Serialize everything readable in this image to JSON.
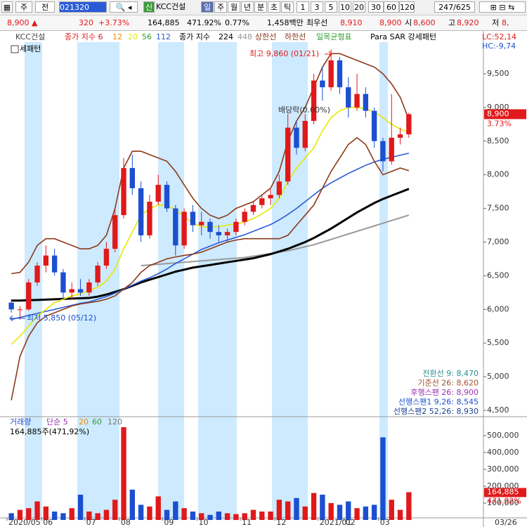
{
  "toolbar": {
    "buttons": [
      "주",
      "전"
    ],
    "code": "021320",
    "tag": "신",
    "name": "KCC건설",
    "periods": [
      "일",
      "주",
      "월",
      "년",
      "분",
      "초",
      "틱"
    ],
    "intervals": [
      "1",
      "3",
      "5",
      "10",
      "20",
      "30",
      "60",
      "120"
    ],
    "count": "247/625"
  },
  "quote": {
    "price": "8,900 ▲",
    "change": "320",
    "rate": "+3.73%",
    "volume": "164,885",
    "volume_rate": "471.92%",
    "turnover": "0.77%",
    "amount": "1,458백만",
    "best": "최우선",
    "best_ask": "8,910",
    "best_bid": "8,900",
    "open_label": "시",
    "open": "8,600",
    "high_label": "고",
    "high": "8,920",
    "low_label": "저",
    "low": "8,"
  },
  "chart_data": [
    {
      "type": "candlestick",
      "up_color": "#e0191b",
      "down_color": "#1c4fd0",
      "open": [
        6100,
        6000,
        6000,
        6400,
        6650,
        6800,
        6550,
        6250,
        6300,
        6250,
        6400,
        6650,
        6900,
        7400,
        8100,
        7800,
        7100,
        7600,
        7850,
        7500,
        6950,
        7450,
        7250,
        7300,
        7150,
        7100,
        7150,
        7300,
        7450,
        7550,
        7650,
        7700,
        7900,
        8700,
        8400,
        8800,
        9400,
        9300,
        9700,
        9300,
        9000,
        9200,
        8950,
        8500,
        8200,
        8550,
        8600
      ],
      "high": [
        6150,
        6050,
        6450,
        6700,
        6950,
        6900,
        6600,
        6400,
        6450,
        6450,
        6700,
        7000,
        7500,
        8250,
        8300,
        7900,
        7700,
        8000,
        7900,
        7550,
        7500,
        7550,
        7450,
        7350,
        7250,
        7200,
        7350,
        7500,
        7600,
        7700,
        7800,
        8000,
        8900,
        8800,
        8900,
        9500,
        9600,
        9860,
        9750,
        9450,
        9500,
        9300,
        9000,
        8550,
        9200,
        8700,
        8920
      ],
      "low": [
        5950,
        5850,
        5980,
        6350,
        6550,
        6500,
        6150,
        6150,
        6200,
        6200,
        6350,
        6600,
        6850,
        7350,
        7700,
        7000,
        7050,
        7550,
        7450,
        6800,
        6900,
        7150,
        7100,
        7050,
        7000,
        7000,
        7100,
        7250,
        7400,
        7500,
        7550,
        7650,
        7850,
        8300,
        8350,
        8750,
        9100,
        9250,
        9200,
        8850,
        8950,
        8850,
        8400,
        8050,
        8150,
        8450,
        8550
      ],
      "close": [
        6000,
        6000,
        6400,
        6650,
        6800,
        6550,
        6250,
        6300,
        6250,
        6400,
        6650,
        6900,
        7400,
        8100,
        7800,
        7100,
        7600,
        7850,
        7500,
        6950,
        7450,
        7250,
        7300,
        7150,
        7100,
        7150,
        7300,
        7450,
        7550,
        7650,
        7700,
        7900,
        8700,
        8400,
        8800,
        9400,
        9300,
        9700,
        9300,
        9000,
        9200,
        8950,
        8500,
        8200,
        8550,
        8600,
        8900
      ],
      "ylim": [
        4416,
        9970
      ],
      "yticks": [
        {
          "value": 4500,
          "label": "4,500"
        },
        {
          "value": 5000,
          "label": "5,000"
        },
        {
          "value": 5500,
          "label": "5,500"
        },
        {
          "value": 6000,
          "label": "6,000"
        },
        {
          "value": 6500,
          "label": "6,500"
        },
        {
          "value": 7000,
          "label": "7,000"
        },
        {
          "value": 7500,
          "label": "7,500"
        },
        {
          "value": 8000,
          "label": "8,000"
        },
        {
          "value": 8500,
          "label": "8,500"
        },
        {
          "value": 9000,
          "label": "9,000"
        },
        {
          "value": 9500,
          "label": "9,500"
        }
      ],
      "series": [
        {
          "name": "448",
          "color": "#9a9a9a",
          "width": 2,
          "values": [
            null,
            null,
            null,
            null,
            null,
            null,
            null,
            null,
            null,
            null,
            null,
            null,
            null,
            null,
            null,
            6650,
            6660,
            6670,
            6680,
            6690,
            6700,
            6710,
            6720,
            6730,
            6740,
            6750,
            6760,
            6770,
            6790,
            6810,
            6830,
            6850,
            6870,
            6900,
            6930,
            6960,
            7000,
            7040,
            7080,
            7120,
            7160,
            7200,
            7240,
            7280,
            7320,
            7360,
            7400
          ]
        },
        {
          "name": "224",
          "color": "#000000",
          "width": 3,
          "values": [
            6130,
            6130,
            6135,
            6140,
            6145,
            6150,
            6155,
            6160,
            6165,
            6170,
            6190,
            6220,
            6260,
            6300,
            6350,
            6400,
            6440,
            6480,
            6520,
            6560,
            6590,
            6620,
            6640,
            6660,
            6680,
            6700,
            6720,
            6740,
            6760,
            6790,
            6820,
            6860,
            6900,
            6950,
            7000,
            7060,
            7130,
            7200,
            7280,
            7360,
            7440,
            7510,
            7580,
            7640,
            7690,
            7740,
            7790
          ]
        },
        {
          "name": "112",
          "color": "#2a5bd7",
          "width": 1.6,
          "values": [
            5850,
            5880,
            5910,
            5940,
            5970,
            6000,
            6030,
            6060,
            6090,
            6110,
            6150,
            6190,
            6240,
            6300,
            6360,
            6420,
            6470,
            6530,
            6600,
            6680,
            6750,
            6820,
            6890,
            6940,
            6990,
            7030,
            7070,
            7110,
            7160,
            7210,
            7260,
            7330,
            7410,
            7500,
            7600,
            7700,
            7800,
            7880,
            7950,
            8020,
            8080,
            8140,
            8190,
            8230,
            8260,
            8290,
            8320
          ]
        },
        {
          "name": "20",
          "color": "#e8e800",
          "width": 1.6,
          "values": [
            5480,
            5600,
            5750,
            5900,
            6000,
            6100,
            6150,
            6200,
            6230,
            6280,
            6330,
            6420,
            6600,
            6900,
            7150,
            7400,
            7500,
            7550,
            7550,
            7480,
            7380,
            7280,
            7230,
            7220,
            7230,
            7250,
            7270,
            7300,
            7350,
            7420,
            7500,
            7650,
            7900,
            8100,
            8250,
            8400,
            8650,
            8850,
            8950,
            9000,
            9000,
            8980,
            8930,
            8850,
            8750,
            8680,
            8630
          ]
        },
        {
          "name": "상한선",
          "color": "#8b3a1a",
          "width": 1.6,
          "values": [
            6530,
            6550,
            6700,
            6950,
            7050,
            7050,
            7000,
            6950,
            6900,
            6900,
            6950,
            7100,
            7500,
            8100,
            8350,
            8350,
            8300,
            8250,
            8200,
            8050,
            7850,
            7650,
            7500,
            7400,
            7350,
            7400,
            7500,
            7550,
            7600,
            7700,
            7800,
            8050,
            8500,
            8800,
            9000,
            9300,
            9600,
            9800,
            9800,
            9750,
            9700,
            9650,
            9600,
            9500,
            9350,
            9150,
            8820
          ]
        },
        {
          "name": "하한선",
          "color": "#8b3a1a",
          "width": 1.6,
          "values": [
            4650,
            5300,
            5600,
            5800,
            5900,
            5950,
            6000,
            6050,
            6080,
            6100,
            6120,
            6150,
            6200,
            6300,
            6400,
            6550,
            6650,
            6700,
            6750,
            6780,
            6800,
            6820,
            6850,
            6900,
            6950,
            7000,
            7030,
            7050,
            7050,
            7050,
            7050,
            7050,
            7100,
            7250,
            7400,
            7550,
            7800,
            8050,
            8250,
            8450,
            8550,
            8450,
            8200,
            8000,
            8050,
            8100,
            8060
          ]
        }
      ],
      "legend_items": [
        {
          "text": "KCC건설",
          "color": "#444444"
        },
        {
          "text": "종가 지수 6",
          "color": "#e0191b"
        },
        {
          "text": "12",
          "color": "#f08a00"
        },
        {
          "text": "56",
          "color": "#2e9e2e"
        },
        {
          "text": "종가 지수",
          "color": "#000000"
        },
        {
          "text": "일목균형표",
          "color": "#2e9e2e"
        },
        {
          "text": "Para SAR 강세패턴",
          "color": "#000000"
        },
        {
          "text": "세패턴",
          "color": "#000000"
        }
      ],
      "annotations": [
        "최고 9,860 (01/21)",
        "최저 5,850 (05/12)",
        "배당락(0.00%)"
      ],
      "last_price": {
        "value": 8900,
        "label": "8,900"
      },
      "last_rate": "3.73%",
      "lc": "LC:52,14",
      "hc": "HC:-9,74",
      "ichimoku": [
        {
          "text": "전환선 9: 8,470",
          "color": "#2a8f8f"
        },
        {
          "text": "기준선 26: 8,620",
          "color": "#a0522d"
        },
        {
          "text": "후행스팬 26: 8,900",
          "color": "#9b30b0"
        },
        {
          "text": "선행스팬1 9,26: 8,545",
          "color": "#1c4fd0"
        },
        {
          "text": "선행스팬2 52,26: 8,930",
          "color": "#1c3f90"
        }
      ]
    },
    {
      "type": "bar",
      "categories": [
        "2020/05",
        null,
        null,
        null,
        "06",
        null,
        null,
        null,
        null,
        "07",
        null,
        null,
        null,
        "08",
        null,
        null,
        null,
        null,
        "09",
        null,
        null,
        null,
        "10",
        null,
        null,
        null,
        null,
        "11",
        null,
        null,
        null,
        "12",
        null,
        null,
        null,
        null,
        "2021/01",
        null,
        null,
        "02",
        null,
        null,
        null,
        "03",
        null,
        null,
        null
      ],
      "values": [
        40000,
        60000,
        70000,
        110000,
        80000,
        50000,
        40000,
        70000,
        150000,
        50000,
        40000,
        60000,
        120000,
        550000,
        180000,
        90000,
        80000,
        140000,
        60000,
        110000,
        70000,
        50000,
        40000,
        30000,
        50000,
        40000,
        35000,
        40000,
        60000,
        50000,
        50000,
        120000,
        110000,
        130000,
        80000,
        160000,
        150000,
        100000,
        90000,
        110000,
        70000,
        80000,
        90000,
        490000,
        120000,
        60000,
        164885
      ],
      "ylim": [
        0,
        600000
      ],
      "yticks": [
        {
          "value": 100000,
          "label": "100,000"
        },
        {
          "value": 200000,
          "label": "200,000"
        },
        {
          "value": 300000,
          "label": "300,000"
        },
        {
          "value": 400000,
          "label": "400,000"
        },
        {
          "value": 500000,
          "label": "500,000"
        }
      ],
      "legend_items": [
        {
          "text": "거래량",
          "color": "#1c4fd0"
        },
        {
          "text": "단순 5",
          "color": "#9b30b0"
        },
        {
          "text": "20",
          "color": "#f08a00"
        },
        {
          "text": "60",
          "color": "#2e9e2e"
        },
        {
          "text": "120",
          "color": "#777777"
        }
      ],
      "summary": "164,885주(471,92%)",
      "last_volume": {
        "value": 164885,
        "label": "164,885"
      },
      "last_rate": "471.92%",
      "last_date": "03/26"
    }
  ]
}
